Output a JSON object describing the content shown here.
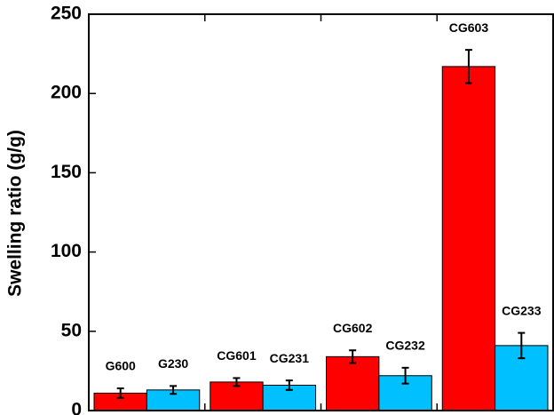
{
  "chart_data": {
    "type": "bar",
    "y_label": "Swelling ratio  (g/g)",
    "categories": [
      null,
      null,
      null,
      null
    ],
    "series": [
      {
        "color": "#ff0000",
        "labels": [
          "G600",
          "CG601",
          "CG602",
          "CG603"
        ],
        "values": [
          11,
          18,
          34,
          217
        ],
        "errors": [
          3,
          2.5,
          4,
          10.5
        ]
      },
      {
        "color": "#00c0ff",
        "labels": [
          "G230",
          "CG231",
          "CG232",
          "CG233"
        ],
        "values": [
          13,
          16,
          22,
          41
        ],
        "errors": [
          2.5,
          3,
          5,
          8
        ]
      }
    ],
    "ylim": [
      0,
      250
    ],
    "yticks": [
      0,
      50,
      100,
      150,
      200,
      250
    ]
  }
}
